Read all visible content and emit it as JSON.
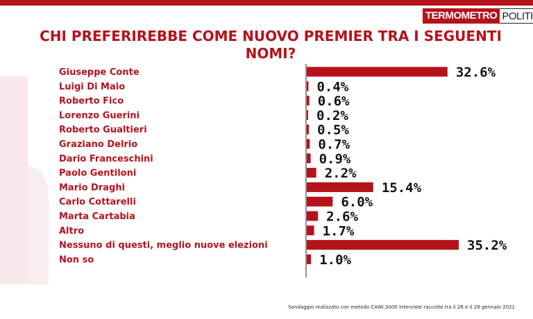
{
  "logo": {
    "part1": "TERMOMETRO",
    "part2": "POLITICO"
  },
  "colors": {
    "accent": "#b5121b",
    "text": "#111111"
  },
  "chart_data": {
    "type": "bar",
    "orientation": "horizontal",
    "title": "CHI PREFERIREBBE COME NUOVO PREMIER TRA I SEGUENTI NOMI?",
    "categories": [
      "Giuseppe Conte",
      "Luigi Di Maio",
      "Roberto Fico",
      "Lorenzo Guerini",
      "Roberto Gualtieri",
      "Graziano Delrio",
      "Dario Franceschini",
      "Paolo Gentiloni",
      "Mario Draghi",
      "Carlo Cottarelli",
      "Marta Cartabia",
      "Altro",
      "Nessuno di questi, meglio nuove elezioni",
      "Non so"
    ],
    "values": [
      32.6,
      0.4,
      0.6,
      0.2,
      0.5,
      0.7,
      0.9,
      2.2,
      15.4,
      6.0,
      2.6,
      1.7,
      35.2,
      1.0
    ],
    "value_labels": [
      "32.6%",
      "0.4%",
      "0.6%",
      "0.2%",
      "0.5%",
      "0.7%",
      "0.9%",
      "2.2%",
      "15.4%",
      "6.0%",
      "2.6%",
      "1.7%",
      "35.2%",
      "1.0%"
    ],
    "xlim": [
      0,
      35.2
    ],
    "grid": false,
    "legend": "none"
  },
  "footer": "Sondaggio realizzato con metodo CAWI,3000 interviste raccolte tra il 26  e il 28 gennaio  2021"
}
